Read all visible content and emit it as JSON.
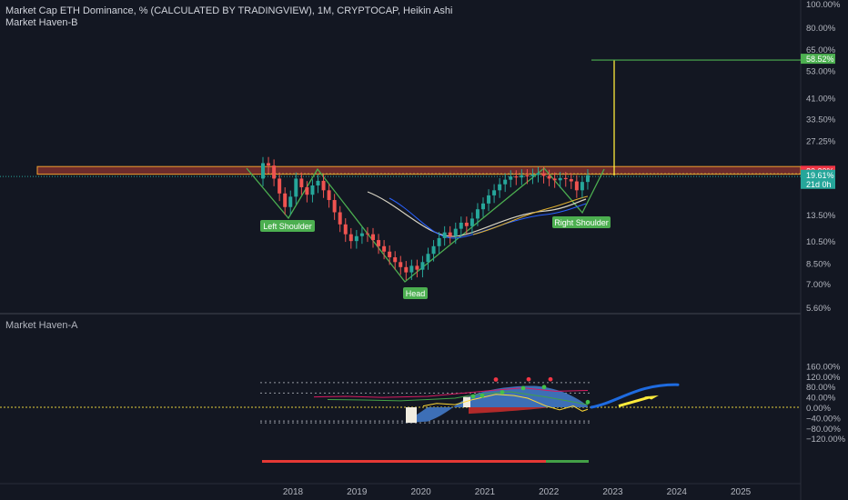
{
  "header": {
    "title": "Market Cap ETH Dominance, % (CALCULATED BY TRADINGVIEW), 1M, CRYPTOCAP, Heikin Ashi",
    "indicator_top": "Market Haven-B",
    "indicator_bottom": "Market Haven-A"
  },
  "colors": {
    "background": "#131722",
    "bull": "#26a69a",
    "bear": "#ef5350",
    "pattern_green": "#4caf50",
    "label_green": "#2e7d32",
    "projection_yellow": "#ffeb3b",
    "resistance_fill": "#6d2b2b",
    "resistance_stroke": "#f0a030",
    "target_green": "#4caf50",
    "oscillator_blue": "#3d6fb6",
    "oscillator_red": "#b22a2a",
    "arrow_blue": "#1e6be0"
  },
  "price_axis": {
    "labels": [
      "100.00%",
      "80.00%",
      "65.00%",
      "53.00%",
      "41.00%",
      "33.50%",
      "27.25%",
      "13.50%",
      "10.50%",
      "8.50%",
      "7.00%",
      "5.60%"
    ],
    "badges": [
      {
        "text": "58.52%",
        "color": "#4caf50"
      },
      {
        "text": "20.20%",
        "color": "#f23645"
      },
      {
        "text": "19.61%",
        "color": "#26a69a"
      },
      {
        "text": "21d 0h",
        "color": "#26a69a"
      }
    ]
  },
  "osc_axis": {
    "labels": [
      "160.00%",
      "120.00%",
      "80.00%",
      "40.00%",
      "0.00%",
      "−40.00%",
      "−80.00%",
      "−120.00%"
    ]
  },
  "time_axis": {
    "labels": [
      "2018",
      "2019",
      "2020",
      "2021",
      "2022",
      "2023",
      "2024",
      "2025"
    ]
  },
  "annotations": {
    "left_shoulder": "Left Shoulder",
    "head": "Head",
    "right_shoulder": "Right Shoulder"
  },
  "chart_data": {
    "type": "candlestick",
    "ylog": true,
    "ylim": [
      5.6,
      100
    ],
    "resistance_zone": [
      19.8,
      21.3
    ],
    "neckline": 19.9,
    "target": 58.52,
    "current": 19.61,
    "candles": [
      {
        "o": 19.0,
        "c": 22.0
      },
      {
        "o": 22.0,
        "c": 21.5
      },
      {
        "o": 21.5,
        "c": 19.0
      },
      {
        "o": 19.0,
        "c": 16.5
      },
      {
        "o": 16.5,
        "c": 14.5
      },
      {
        "o": 14.5,
        "c": 16.0
      },
      {
        "o": 16.0,
        "c": 19.0
      },
      {
        "o": 19.0,
        "c": 17.5
      },
      {
        "o": 17.5,
        "c": 16.3
      },
      {
        "o": 16.3,
        "c": 17.8
      },
      {
        "o": 17.8,
        "c": 18.6
      },
      {
        "o": 18.6,
        "c": 17.0
      },
      {
        "o": 17.0,
        "c": 15.5
      },
      {
        "o": 15.5,
        "c": 13.8
      },
      {
        "o": 13.8,
        "c": 12.3
      },
      {
        "o": 12.3,
        "c": 11.2
      },
      {
        "o": 11.2,
        "c": 10.5
      },
      {
        "o": 10.5,
        "c": 11.0
      },
      {
        "o": 11.0,
        "c": 11.3
      },
      {
        "o": 11.3,
        "c": 11.2
      },
      {
        "o": 11.2,
        "c": 10.6
      },
      {
        "o": 10.6,
        "c": 10.0
      },
      {
        "o": 10.0,
        "c": 9.5
      },
      {
        "o": 9.5,
        "c": 9.0
      },
      {
        "o": 9.0,
        "c": 8.6
      },
      {
        "o": 8.6,
        "c": 8.2
      },
      {
        "o": 8.2,
        "c": 7.8
      },
      {
        "o": 7.8,
        "c": 8.3
      },
      {
        "o": 8.3,
        "c": 8.0
      },
      {
        "o": 8.0,
        "c": 8.6
      },
      {
        "o": 8.6,
        "c": 9.3
      },
      {
        "o": 9.3,
        "c": 10.0
      },
      {
        "o": 10.0,
        "c": 10.8
      },
      {
        "o": 10.8,
        "c": 11.4
      },
      {
        "o": 11.4,
        "c": 11.0
      },
      {
        "o": 11.0,
        "c": 11.8
      },
      {
        "o": 11.8,
        "c": 12.5
      },
      {
        "o": 12.5,
        "c": 12.1
      },
      {
        "o": 12.1,
        "c": 13.0
      },
      {
        "o": 13.0,
        "c": 14.2
      },
      {
        "o": 14.2,
        "c": 15.0
      },
      {
        "o": 15.0,
        "c": 16.2
      },
      {
        "o": 16.2,
        "c": 17.0
      },
      {
        "o": 17.0,
        "c": 18.0
      },
      {
        "o": 18.0,
        "c": 18.8
      },
      {
        "o": 18.8,
        "c": 19.4
      },
      {
        "o": 19.4,
        "c": 19.2
      },
      {
        "o": 19.2,
        "c": 19.6
      },
      {
        "o": 19.6,
        "c": 19.4
      },
      {
        "o": 19.4,
        "c": 19.7
      },
      {
        "o": 19.7,
        "c": 20.0
      },
      {
        "o": 20.0,
        "c": 19.5
      },
      {
        "o": 19.5,
        "c": 19.0
      },
      {
        "o": 19.0,
        "c": 18.7
      },
      {
        "o": 18.7,
        "c": 19.1
      },
      {
        "o": 19.1,
        "c": 18.9
      },
      {
        "o": 18.9,
        "c": 18.5
      },
      {
        "o": 18.5,
        "c": 17.0
      },
      {
        "o": 17.0,
        "c": 18.4
      },
      {
        "o": 18.4,
        "c": 19.61
      }
    ]
  }
}
